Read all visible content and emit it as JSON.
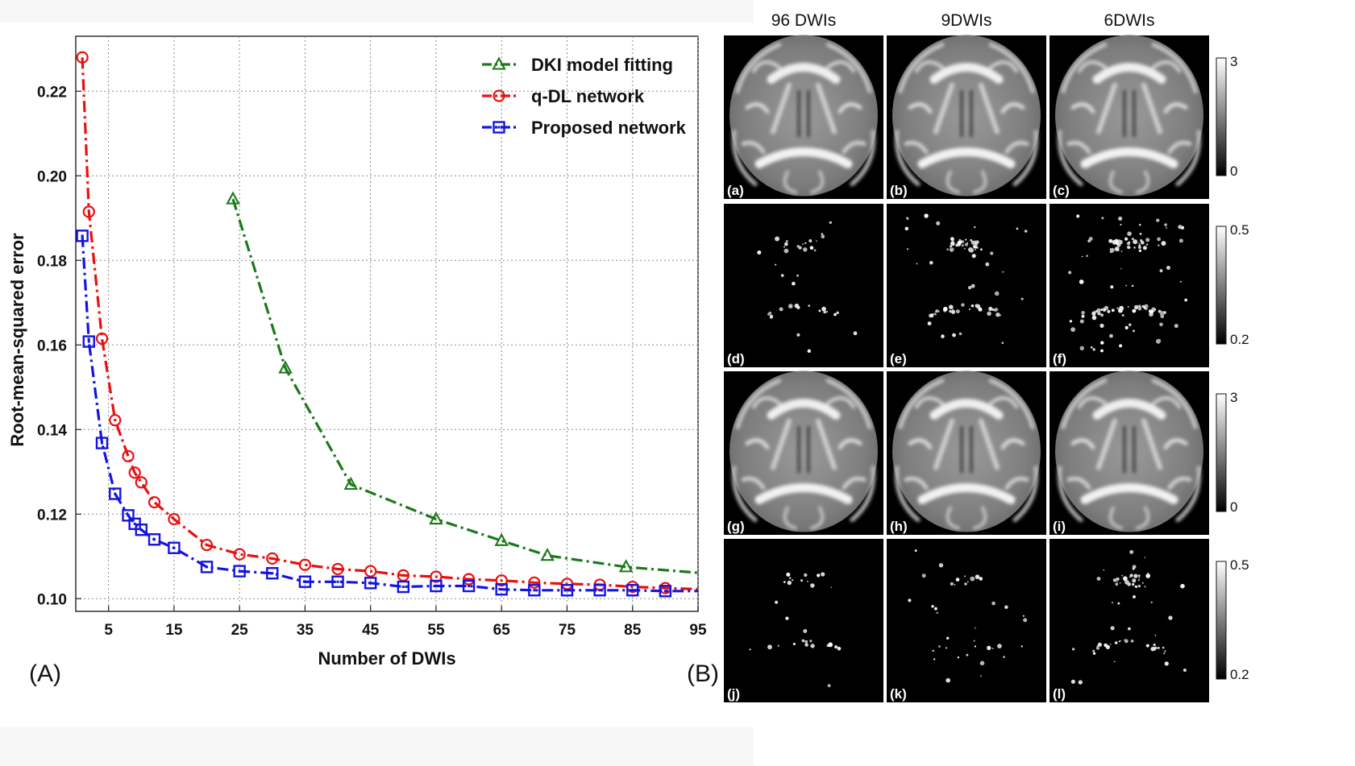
{
  "panel_a_label": "(A)",
  "panel_b_label": "(B)",
  "chart_data": {
    "type": "line",
    "title": "",
    "xlabel": "Number of DWIs",
    "ylabel": "Root-mean-squared error",
    "xlim": [
      0,
      95
    ],
    "ylim": [
      0.097,
      0.233
    ],
    "xticks": [
      5,
      15,
      25,
      35,
      45,
      55,
      65,
      75,
      85,
      95
    ],
    "yticks": [
      0.1,
      0.12,
      0.14,
      0.16,
      0.18,
      0.2,
      0.22
    ],
    "ytick_labels": [
      "0.10",
      "0.12",
      "0.14",
      "0.16",
      "0.18",
      "0.20",
      "0.22"
    ],
    "grid": true,
    "legend_position": "top-right",
    "series": [
      {
        "name": "DKI model fitting",
        "color": "#1a7a1a",
        "marker": "triangle",
        "linestyle": "dash-dot",
        "x": [
          24,
          32,
          42,
          55,
          65,
          72,
          84,
          96
        ],
        "y": [
          0.1945,
          0.1545,
          0.127,
          0.1188,
          0.1137,
          0.1102,
          0.1075,
          0.106
        ],
        "marked": [
          true,
          true,
          true,
          true,
          true,
          true,
          true,
          false
        ]
      },
      {
        "name": "q-DL network",
        "color": "#e81010",
        "marker": "circle",
        "linestyle": "dash-dot",
        "x": [
          1,
          2,
          4,
          6,
          8,
          9,
          10,
          12,
          15,
          20,
          25,
          30,
          35,
          40,
          45,
          50,
          55,
          60,
          65,
          70,
          75,
          80,
          85,
          90,
          96
        ],
        "y": [
          0.228,
          0.1915,
          0.1615,
          0.1422,
          0.1337,
          0.1298,
          0.1275,
          0.1228,
          0.1188,
          0.1127,
          0.1105,
          0.1095,
          0.108,
          0.107,
          0.1065,
          0.1055,
          0.1052,
          0.1046,
          0.1043,
          0.1038,
          0.1035,
          0.1033,
          0.1028,
          0.1025,
          0.1022
        ],
        "marked": [
          true,
          true,
          true,
          true,
          true,
          true,
          true,
          true,
          true,
          true,
          true,
          true,
          true,
          true,
          true,
          true,
          true,
          true,
          true,
          true,
          true,
          true,
          true,
          true,
          false
        ]
      },
      {
        "name": "Proposed network",
        "color": "#1414e0",
        "marker": "square",
        "linestyle": "dash-dot",
        "x": [
          1,
          2,
          4,
          6,
          8,
          9,
          10,
          12,
          15,
          20,
          25,
          30,
          35,
          40,
          45,
          50,
          55,
          60,
          65,
          70,
          75,
          80,
          85,
          90,
          96
        ],
        "y": [
          0.1858,
          0.1608,
          0.1368,
          0.1248,
          0.1197,
          0.1177,
          0.1163,
          0.114,
          0.112,
          0.1075,
          0.1065,
          0.106,
          0.104,
          0.104,
          0.1037,
          0.1028,
          0.103,
          0.103,
          0.1022,
          0.102,
          0.102,
          0.102,
          0.102,
          0.1018,
          0.1018
        ],
        "marked": [
          true,
          true,
          true,
          true,
          true,
          true,
          true,
          true,
          true,
          true,
          true,
          true,
          true,
          true,
          true,
          true,
          true,
          true,
          true,
          true,
          true,
          true,
          true,
          true,
          false
        ]
      }
    ]
  },
  "panel_b": {
    "column_titles": [
      "96 DWIs",
      "9DWIs",
      "6DWIs"
    ],
    "rows": [
      {
        "labels": [
          "(a)",
          "(b)",
          "(c)"
        ],
        "kind": "map",
        "colorbar": {
          "top": "3",
          "bottom": "0"
        }
      },
      {
        "labels": [
          "(d)",
          "(e)",
          "(f)"
        ],
        "kind": "error",
        "colorbar": {
          "top": "0.5",
          "bottom": "0.2"
        }
      },
      {
        "labels": [
          "(g)",
          "(h)",
          "(i)"
        ],
        "kind": "map",
        "colorbar": {
          "top": "3",
          "bottom": "0"
        }
      },
      {
        "labels": [
          "(j)",
          "(k)",
          "(l)"
        ],
        "kind": "error",
        "colorbar": {
          "top": "0.5",
          "bottom": "0.2"
        }
      }
    ]
  }
}
